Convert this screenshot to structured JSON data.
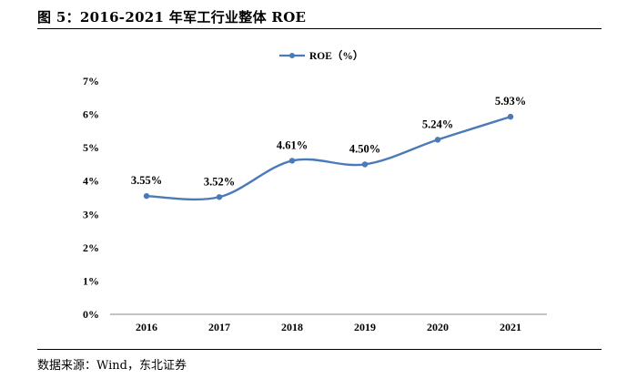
{
  "figure": {
    "title": "图 5：2016-2021 年军工行业整体 ROE",
    "source": "数据来源：Wind，东北证券"
  },
  "chart_data": {
    "type": "line",
    "title": "",
    "xlabel": "",
    "ylabel": "",
    "categories": [
      "2016",
      "2017",
      "2018",
      "2019",
      "2020",
      "2021"
    ],
    "series": [
      {
        "name": "ROE（%）",
        "values": [
          3.55,
          3.52,
          4.61,
          4.5,
          5.24,
          5.93
        ],
        "data_labels": [
          "3.55%",
          "3.52%",
          "4.61%",
          "4.50%",
          "5.24%",
          "5.93%"
        ],
        "color": "#4a7ab8",
        "smooth": true,
        "markers": true
      }
    ],
    "ylim": [
      0,
      7
    ],
    "yticks": [
      0,
      1,
      2,
      3,
      4,
      5,
      6,
      7
    ],
    "ytick_labels": [
      "0%",
      "1%",
      "2%",
      "3%",
      "4%",
      "5%",
      "6%",
      "7%"
    ],
    "grid": false,
    "legend": "top-center"
  }
}
